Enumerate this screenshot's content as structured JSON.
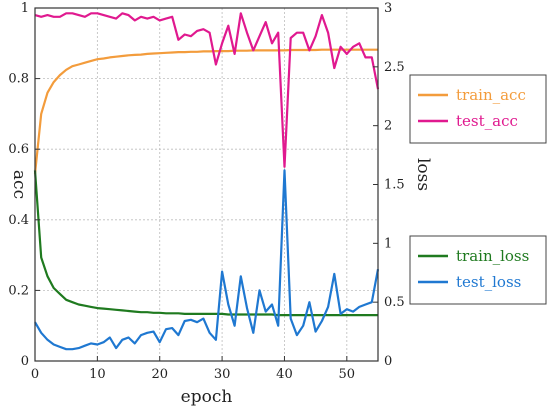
{
  "chart_data": {
    "type": "line",
    "xlabel": "epoch",
    "ylabel_left": "acc",
    "ylabel_right": "loss",
    "xlim": [
      0,
      55
    ],
    "ylim_left": [
      0,
      1
    ],
    "ylim_right": [
      0,
      3
    ],
    "x_ticks": [
      0,
      10,
      20,
      30,
      40,
      50
    ],
    "y_ticks_left": [
      0,
      0.2,
      0.4,
      0.6,
      0.8,
      1
    ],
    "y_ticks_right": [
      0,
      0.5,
      1,
      1.5,
      2,
      2.5,
      3
    ],
    "grid": true,
    "legends": [
      {
        "position": "upper-right, outside plot",
        "entries": [
          "train_acc",
          "test_acc"
        ]
      },
      {
        "position": "lower-right, outside plot",
        "entries": [
          "train_loss",
          "test_loss"
        ]
      }
    ],
    "x": [
      0,
      1,
      2,
      3,
      4,
      5,
      6,
      7,
      8,
      9,
      10,
      11,
      12,
      13,
      14,
      15,
      16,
      17,
      18,
      19,
      20,
      21,
      22,
      23,
      24,
      25,
      26,
      27,
      28,
      29,
      30,
      31,
      32,
      33,
      34,
      35,
      36,
      37,
      38,
      39,
      40,
      41,
      42,
      43,
      44,
      45,
      46,
      47,
      48,
      49,
      50,
      51,
      52,
      53,
      54,
      55
    ],
    "series": [
      {
        "name": "train_acc",
        "axis": "left",
        "color": "#f39c3c",
        "values": [
          0.53,
          0.7,
          0.76,
          0.79,
          0.81,
          0.825,
          0.835,
          0.84,
          0.845,
          0.85,
          0.855,
          0.857,
          0.86,
          0.862,
          0.864,
          0.866,
          0.867,
          0.868,
          0.87,
          0.871,
          0.872,
          0.873,
          0.874,
          0.875,
          0.875,
          0.876,
          0.876,
          0.877,
          0.877,
          0.878,
          0.878,
          0.878,
          0.879,
          0.879,
          0.879,
          0.88,
          0.88,
          0.88,
          0.88,
          0.88,
          0.88,
          0.881,
          0.881,
          0.881,
          0.881,
          0.881,
          0.882,
          0.882,
          0.882,
          0.882,
          0.882,
          0.882,
          0.882,
          0.882,
          0.882,
          0.882
        ]
      },
      {
        "name": "test_acc",
        "axis": "left",
        "color": "#e0198f",
        "values": [
          0.98,
          0.975,
          0.98,
          0.975,
          0.975,
          0.985,
          0.985,
          0.98,
          0.975,
          0.985,
          0.985,
          0.98,
          0.975,
          0.97,
          0.985,
          0.98,
          0.965,
          0.975,
          0.97,
          0.975,
          0.965,
          0.97,
          0.975,
          0.91,
          0.925,
          0.92,
          0.935,
          0.94,
          0.93,
          0.84,
          0.9,
          0.95,
          0.87,
          0.985,
          0.93,
          0.88,
          0.92,
          0.96,
          0.9,
          0.93,
          0.55,
          0.915,
          0.93,
          0.93,
          0.88,
          0.92,
          0.98,
          0.93,
          0.83,
          0.89,
          0.87,
          0.89,
          0.9,
          0.86,
          0.86,
          0.77
        ]
      },
      {
        "name": "train_loss",
        "axis": "right",
        "color": "#1f7a1f",
        "values": [
          1.62,
          0.88,
          0.72,
          0.62,
          0.57,
          0.52,
          0.5,
          0.48,
          0.47,
          0.46,
          0.45,
          0.445,
          0.44,
          0.435,
          0.43,
          0.425,
          0.42,
          0.415,
          0.415,
          0.41,
          0.41,
          0.405,
          0.405,
          0.405,
          0.4,
          0.4,
          0.4,
          0.4,
          0.4,
          0.4,
          0.4,
          0.395,
          0.395,
          0.395,
          0.395,
          0.395,
          0.395,
          0.395,
          0.395,
          0.39,
          0.39,
          0.39,
          0.39,
          0.39,
          0.39,
          0.39,
          0.39,
          0.39,
          0.39,
          0.39,
          0.39,
          0.39,
          0.39,
          0.39,
          0.39,
          0.39
        ]
      },
      {
        "name": "test_loss",
        "axis": "right",
        "color": "#1f78d1",
        "values": [
          0.33,
          0.24,
          0.18,
          0.14,
          0.12,
          0.1,
          0.1,
          0.11,
          0.13,
          0.15,
          0.14,
          0.16,
          0.2,
          0.11,
          0.18,
          0.2,
          0.15,
          0.22,
          0.24,
          0.25,
          0.16,
          0.27,
          0.28,
          0.22,
          0.34,
          0.35,
          0.33,
          0.36,
          0.24,
          0.18,
          0.76,
          0.48,
          0.3,
          0.72,
          0.45,
          0.24,
          0.6,
          0.42,
          0.48,
          0.3,
          1.62,
          0.36,
          0.22,
          0.3,
          0.5,
          0.25,
          0.34,
          0.46,
          0.74,
          0.4,
          0.44,
          0.42,
          0.46,
          0.48,
          0.5,
          0.78
        ]
      }
    ]
  }
}
